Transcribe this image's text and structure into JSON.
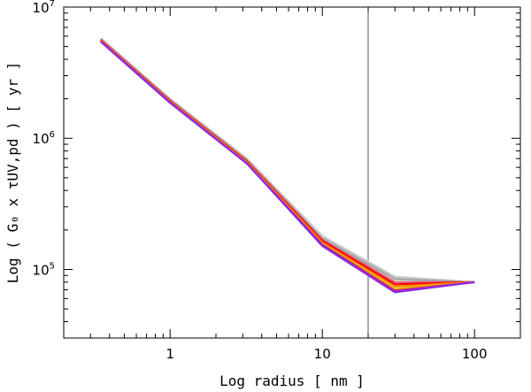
{
  "chart_data": {
    "type": "line",
    "xscale": "log",
    "yscale": "log",
    "xlim": [
      0.2,
      200
    ],
    "ylim": [
      30000,
      10000000
    ],
    "xlabel": "Log radius [ nm ]",
    "ylabel": "Log ( G₀ x τUV,pd ) [ yr ]",
    "x_ticks": [
      {
        "value": 1,
        "label": "1"
      },
      {
        "value": 10,
        "label": "10"
      },
      {
        "value": 100,
        "label": "100"
      }
    ],
    "y_ticks": [
      {
        "value": 100000,
        "base": "10",
        "exp": "5"
      },
      {
        "value": 1000000,
        "base": "10",
        "exp": "6"
      },
      {
        "value": 10000000,
        "base": "10",
        "exp": "7"
      }
    ],
    "vertical_line": {
      "x": 20,
      "color": "#555555"
    },
    "x": [
      0.35,
      1,
      3.2,
      10,
      30,
      100
    ],
    "series": [
      {
        "color": "#cfcfcf",
        "values": [
          5800000,
          2000000,
          700000,
          180000,
          88000,
          80000
        ]
      },
      {
        "color": "#bdbdbd",
        "values": [
          5750000,
          1980000,
          690000,
          175000,
          86000,
          80000
        ]
      },
      {
        "color": "#a8a8a8",
        "values": [
          5700000,
          1960000,
          680000,
          172000,
          84000,
          80000
        ]
      },
      {
        "color": "#e06080",
        "values": [
          5650000,
          1940000,
          670000,
          168000,
          80000,
          80000
        ]
      },
      {
        "color": "#ff0000",
        "values": [
          5600000,
          1920000,
          665000,
          165000,
          77000,
          80000
        ]
      },
      {
        "color": "#ff8c00",
        "values": [
          5550000,
          1900000,
          655000,
          160000,
          74000,
          80000
        ]
      },
      {
        "color": "#e0c000",
        "values": [
          5520000,
          1890000,
          650000,
          157000,
          71000,
          80000
        ]
      },
      {
        "color": "#d0208c",
        "values": [
          5500000,
          1880000,
          645000,
          155000,
          69000,
          80000
        ]
      },
      {
        "color": "#8a2be2",
        "values": [
          5450000,
          1860000,
          640000,
          151000,
          67000,
          80000
        ]
      }
    ]
  }
}
